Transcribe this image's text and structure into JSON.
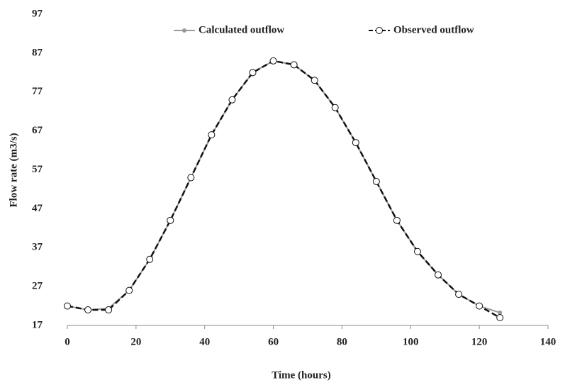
{
  "chart_data": {
    "type": "line",
    "x_label": "Time (hours)",
    "y_label": "Flow rate (m3/s)",
    "x": [
      0,
      6,
      12,
      18,
      24,
      30,
      36,
      42,
      48,
      54,
      60,
      66,
      72,
      78,
      84,
      90,
      96,
      102,
      108,
      114,
      120,
      126
    ],
    "series": [
      {
        "name": "Calculated outflow",
        "color": "#999999",
        "dash": false,
        "marker": "dot",
        "values": [
          22,
          21,
          21.4,
          26,
          34,
          44,
          55,
          66,
          75,
          82,
          85,
          84,
          80,
          73,
          64,
          54,
          44,
          36,
          30,
          25,
          22,
          20.3
        ]
      },
      {
        "name": "Observed outflow",
        "color": "#111111",
        "dash": true,
        "marker": "open-circle",
        "values": [
          22,
          21,
          21,
          26,
          34,
          44,
          55,
          66,
          75,
          82,
          85,
          84,
          80,
          73,
          64,
          54,
          44,
          36,
          30,
          25,
          22,
          19
        ]
      }
    ],
    "xlim": [
      0,
      140
    ],
    "xticks": [
      0,
      20,
      40,
      60,
      80,
      100,
      120,
      140
    ],
    "ylim": [
      17,
      97
    ],
    "yticks": [
      17,
      27,
      37,
      47,
      57,
      67,
      77,
      87,
      97
    ],
    "grid": false,
    "legend": "top"
  }
}
